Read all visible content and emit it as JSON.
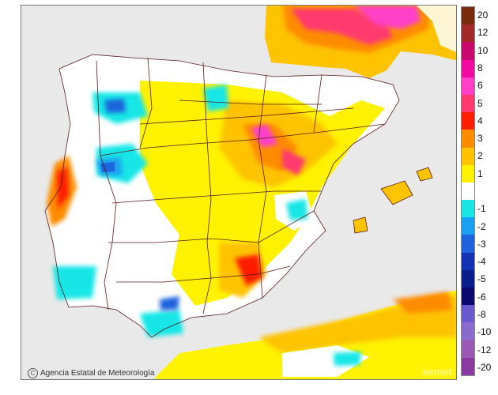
{
  "credit": {
    "logo_glyph": "C",
    "text": "Agencia Estatal de Meteorología"
  },
  "brand_watermark": "aemet",
  "legend": {
    "items": [
      {
        "label": "20",
        "color": "#7a2c0c"
      },
      {
        "label": "12",
        "color": "#a32a2a"
      },
      {
        "label": "10",
        "color": "#c80a6e"
      },
      {
        "label": "8",
        "color": "#f00aa0"
      },
      {
        "label": "6",
        "color": "#ff3fc8"
      },
      {
        "label": "5",
        "color": "#ff3a6e"
      },
      {
        "label": "4",
        "color": "#ff1e00"
      },
      {
        "label": "3",
        "color": "#ff8c00"
      },
      {
        "label": "2",
        "color": "#ffc300"
      },
      {
        "label": "1",
        "color": "#fff200"
      },
      {
        "label": "",
        "color": "#ffffff"
      },
      {
        "label": "-1",
        "color": "#19e6e6"
      },
      {
        "label": "-2",
        "color": "#1aa0f0"
      },
      {
        "label": "-3",
        "color": "#1e64dc"
      },
      {
        "label": "-4",
        "color": "#1432b4"
      },
      {
        "label": "-5",
        "color": "#0a1e8c"
      },
      {
        "label": "-6",
        "color": "#0a0a6e"
      },
      {
        "label": "-8",
        "color": "#6a5acd"
      },
      {
        "label": "-10",
        "color": "#8a6acd"
      },
      {
        "label": "-12",
        "color": "#9a5ab4"
      },
      {
        "label": "-20",
        "color": "#8a3aa0"
      }
    ]
  },
  "colors": {
    "sea": "#e9e9e9",
    "land_neutral": "#ffffff",
    "border": "#5a1a1a"
  }
}
